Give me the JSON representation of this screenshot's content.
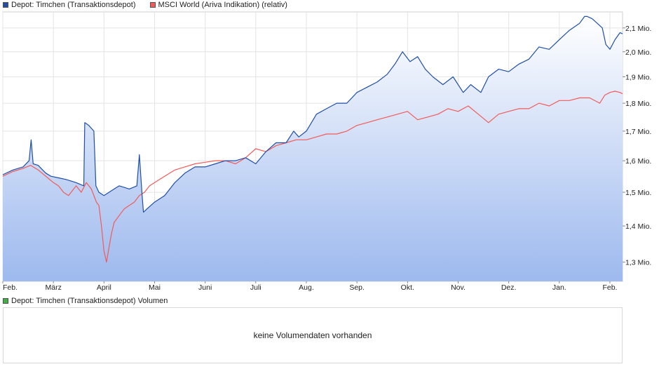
{
  "legend": {
    "series1": {
      "label": "Depot: Timchen (Transaktionsdepot)",
      "color": "#1f4fa8"
    },
    "series2": {
      "label": "MSCI World (Ariva Indikation) (relativ)",
      "color": "#f25a5a"
    }
  },
  "volume": {
    "legend_label": "Depot: Timchen (Transaktionsdepot) Volumen",
    "legend_color": "#3cb043",
    "message": "keine Volumendaten vorhanden"
  },
  "chart_data": {
    "type": "area",
    "x_tick_labels": [
      "Feb.",
      "März",
      "April",
      "Mai",
      "Juni",
      "Juli",
      "Aug.",
      "Sep.",
      "Okt.",
      "Nov.",
      "Dez.",
      "Jan.",
      "Feb."
    ],
    "y_tick_labels": [
      "1,3 Mio.",
      "1,4 Mio.",
      "1,5 Mio.",
      "1,6 Mio.",
      "1,7 Mio.",
      "1,8 Mio.",
      "1,9 Mio.",
      "2,0 Mio.",
      "2,1 Mio."
    ],
    "y_ticks": [
      1.3,
      1.4,
      1.5,
      1.6,
      1.7,
      1.8,
      1.9,
      2.0,
      2.1
    ],
    "ylim": [
      1.25,
      2.17
    ],
    "y_scale": "log",
    "xlim": [
      0,
      12.25
    ],
    "grid": true,
    "legend_position": "top-left",
    "series": [
      {
        "name": "Depot: Timchen (Transaktionsdepot)",
        "color": "#1f4fa8",
        "fill": true,
        "x": [
          0,
          0.2,
          0.4,
          0.52,
          0.56,
          0.6,
          0.7,
          0.85,
          0.95,
          1.1,
          1.25,
          1.45,
          1.6,
          1.62,
          1.7,
          1.8,
          1.84,
          1.9,
          2.0,
          2.1,
          2.2,
          2.3,
          2.4,
          2.5,
          2.65,
          2.7,
          2.75,
          2.78,
          2.85,
          3.0,
          3.2,
          3.4,
          3.6,
          3.8,
          4.0,
          4.2,
          4.4,
          4.6,
          4.8,
          5.0,
          5.2,
          5.4,
          5.6,
          5.75,
          5.85,
          6.0,
          6.2,
          6.4,
          6.6,
          6.8,
          7.0,
          7.2,
          7.4,
          7.6,
          7.75,
          7.9,
          8.05,
          8.2,
          8.35,
          8.5,
          8.7,
          8.9,
          9.1,
          9.25,
          9.45,
          9.6,
          9.8,
          10.0,
          10.2,
          10.4,
          10.6,
          10.8,
          11.0,
          11.2,
          11.4,
          11.5,
          11.55,
          11.65,
          11.75,
          11.85,
          11.92,
          12.0,
          12.1,
          12.2,
          12.25
        ],
        "y": [
          1.555,
          1.57,
          1.58,
          1.6,
          1.67,
          1.59,
          1.585,
          1.56,
          1.55,
          1.545,
          1.54,
          1.53,
          1.52,
          1.73,
          1.72,
          1.7,
          1.52,
          1.5,
          1.49,
          1.5,
          1.51,
          1.52,
          1.515,
          1.51,
          1.52,
          1.62,
          1.5,
          1.44,
          1.45,
          1.47,
          1.49,
          1.53,
          1.56,
          1.58,
          1.58,
          1.59,
          1.6,
          1.6,
          1.61,
          1.59,
          1.63,
          1.66,
          1.66,
          1.7,
          1.68,
          1.7,
          1.76,
          1.78,
          1.8,
          1.8,
          1.84,
          1.86,
          1.88,
          1.91,
          1.95,
          2.0,
          1.96,
          1.98,
          1.93,
          1.9,
          1.87,
          1.9,
          1.84,
          1.87,
          1.84,
          1.9,
          1.93,
          1.92,
          1.95,
          1.97,
          2.02,
          2.01,
          2.05,
          2.09,
          2.12,
          2.15,
          2.15,
          2.14,
          2.12,
          2.1,
          2.03,
          2.01,
          2.05,
          2.08,
          2.075
        ]
      },
      {
        "name": "MSCI World (Ariva Indikation) (relativ)",
        "color": "#f25a5a",
        "fill": false,
        "x": [
          0,
          0.2,
          0.4,
          0.55,
          0.7,
          0.85,
          1.0,
          1.1,
          1.2,
          1.3,
          1.45,
          1.55,
          1.65,
          1.75,
          1.85,
          1.9,
          1.95,
          2.0,
          2.05,
          2.1,
          2.15,
          2.2,
          2.3,
          2.4,
          2.5,
          2.6,
          2.7,
          2.8,
          2.9,
          3.0,
          3.2,
          3.4,
          3.6,
          3.8,
          4.0,
          4.2,
          4.4,
          4.6,
          4.8,
          5.0,
          5.2,
          5.4,
          5.6,
          5.8,
          6.0,
          6.2,
          6.4,
          6.6,
          6.8,
          7.0,
          7.2,
          7.4,
          7.6,
          7.8,
          8.0,
          8.2,
          8.4,
          8.6,
          8.8,
          9.0,
          9.2,
          9.4,
          9.6,
          9.8,
          10.0,
          10.2,
          10.4,
          10.6,
          10.8,
          11.0,
          11.2,
          11.4,
          11.6,
          11.8,
          11.9,
          12.0,
          12.1,
          12.2,
          12.25
        ],
        "y": [
          1.55,
          1.565,
          1.575,
          1.585,
          1.57,
          1.55,
          1.53,
          1.52,
          1.5,
          1.49,
          1.52,
          1.5,
          1.53,
          1.51,
          1.47,
          1.46,
          1.4,
          1.33,
          1.3,
          1.34,
          1.38,
          1.41,
          1.43,
          1.45,
          1.46,
          1.47,
          1.49,
          1.5,
          1.52,
          1.53,
          1.55,
          1.57,
          1.58,
          1.59,
          1.595,
          1.6,
          1.6,
          1.59,
          1.61,
          1.64,
          1.63,
          1.65,
          1.66,
          1.67,
          1.67,
          1.68,
          1.69,
          1.69,
          1.7,
          1.72,
          1.73,
          1.74,
          1.75,
          1.76,
          1.77,
          1.74,
          1.75,
          1.76,
          1.78,
          1.77,
          1.79,
          1.76,
          1.73,
          1.76,
          1.77,
          1.78,
          1.78,
          1.8,
          1.79,
          1.81,
          1.81,
          1.82,
          1.82,
          1.8,
          1.83,
          1.84,
          1.845,
          1.84,
          1.835
        ]
      }
    ]
  }
}
